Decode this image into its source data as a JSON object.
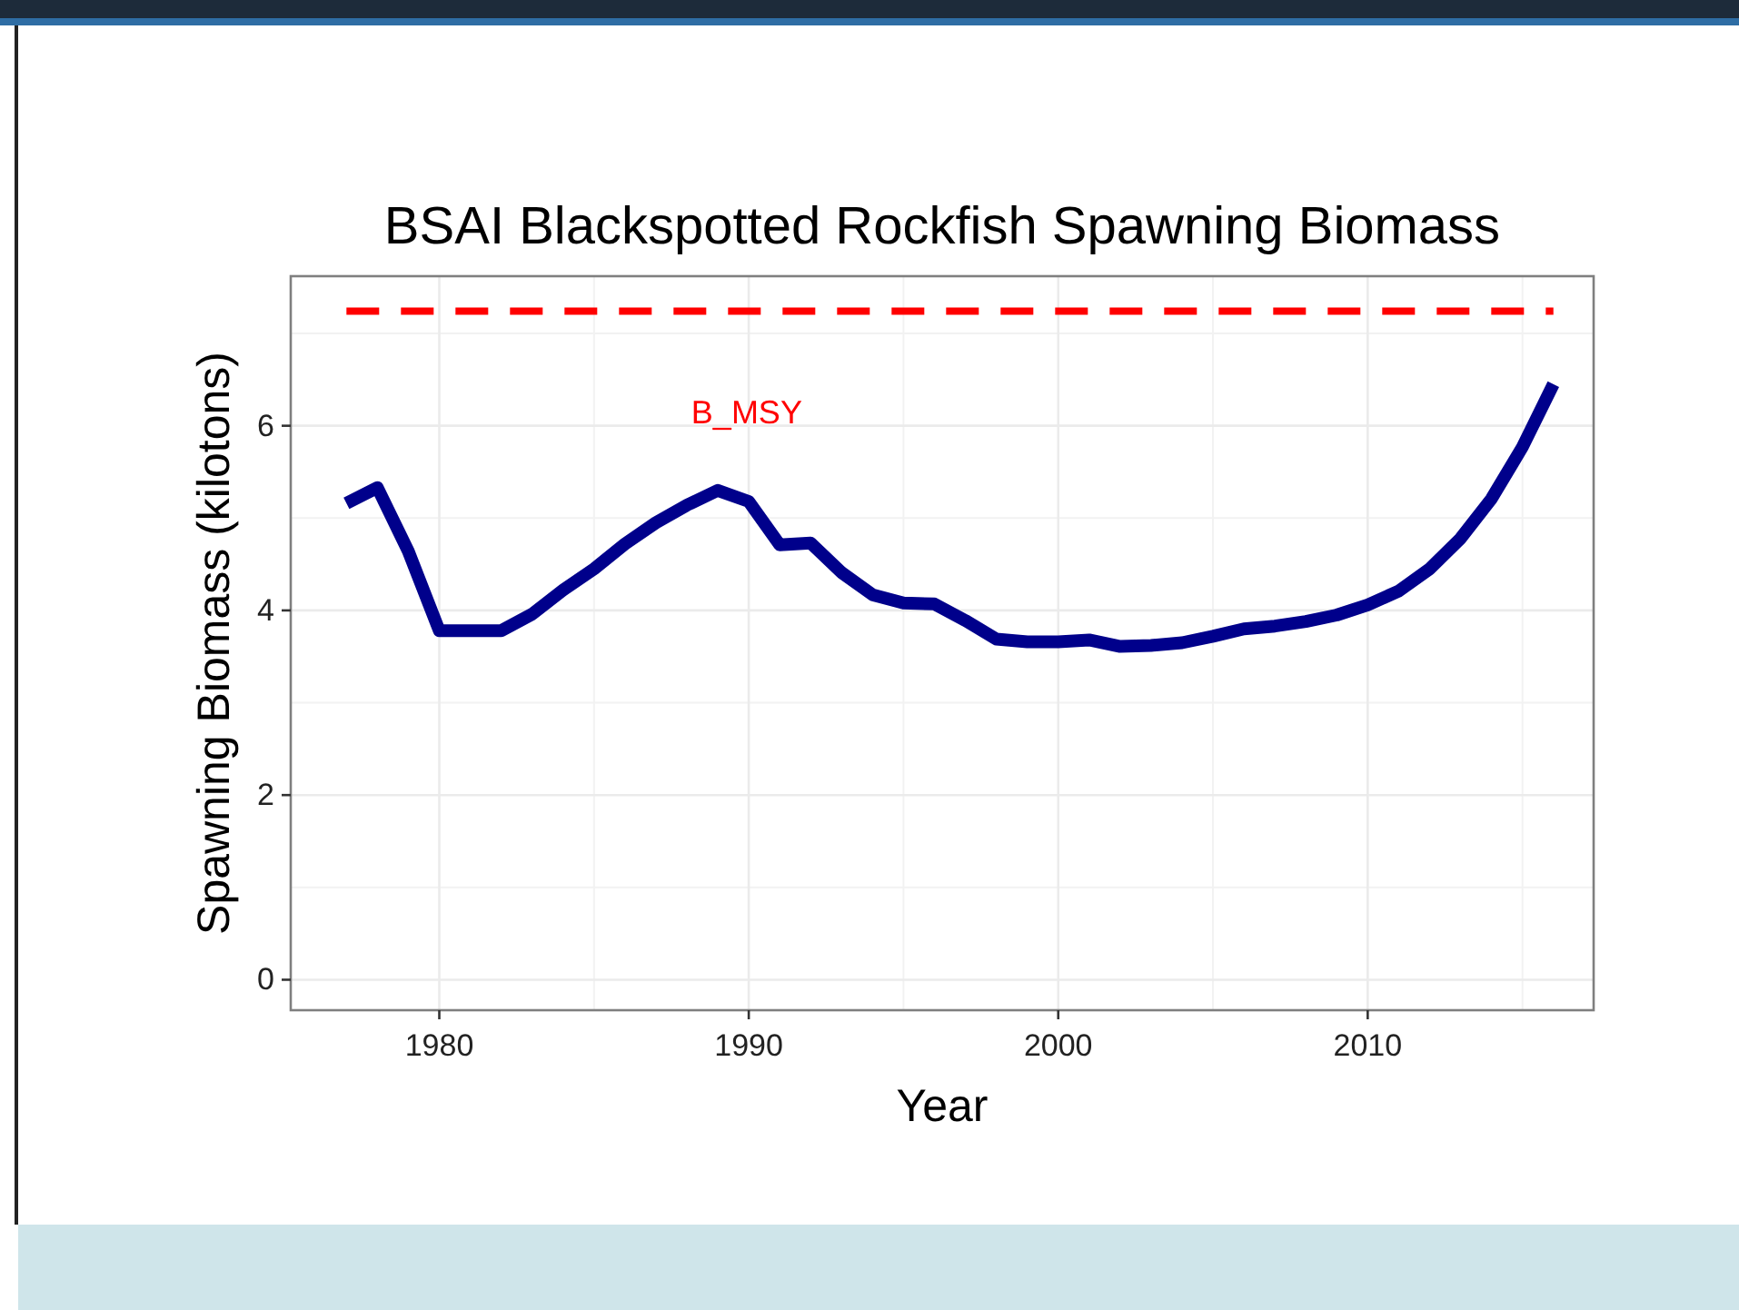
{
  "chart_data": {
    "type": "line",
    "title": "BSAI Blackspotted Rockfish Spawning Biomass",
    "xlabel": "Year",
    "ylabel": "Spawning Biomass (kilotons)",
    "x": [
      1977,
      1978,
      1979,
      1980,
      1981,
      1982,
      1983,
      1984,
      1985,
      1986,
      1987,
      1988,
      1989,
      1990,
      1991,
      1992,
      1993,
      1994,
      1995,
      1996,
      1997,
      1998,
      1999,
      2000,
      2001,
      2002,
      2003,
      2004,
      2005,
      2006,
      2007,
      2008,
      2009,
      2010,
      2011,
      2012,
      2013,
      2014,
      2015,
      2016
    ],
    "series": [
      {
        "color": "#00008b",
        "values": [
          5.16,
          5.33,
          4.64,
          3.78,
          3.78,
          3.78,
          3.96,
          4.22,
          4.45,
          4.72,
          4.95,
          5.14,
          5.3,
          5.18,
          4.71,
          4.73,
          4.41,
          4.17,
          4.08,
          4.07,
          3.89,
          3.69,
          3.66,
          3.66,
          3.68,
          3.61,
          3.62,
          3.65,
          3.72,
          3.8,
          3.83,
          3.88,
          3.95,
          4.06,
          4.21,
          4.45,
          4.78,
          5.21,
          5.77,
          6.45
        ]
      }
    ],
    "xlim": [
      1975.2,
      2017.3
    ],
    "xticks": [
      1980,
      1990,
      2000,
      2010
    ],
    "ylim": [
      -0.33,
      7.62
    ],
    "yticks": [
      0,
      2,
      4,
      6
    ],
    "ref_lines": [
      {
        "axis": "y",
        "value": 7.24,
        "label": "B_MSY",
        "color": "#ff0000",
        "line_style": "dashed"
      }
    ],
    "grid": true,
    "marker": "none",
    "line_style": "solid"
  }
}
